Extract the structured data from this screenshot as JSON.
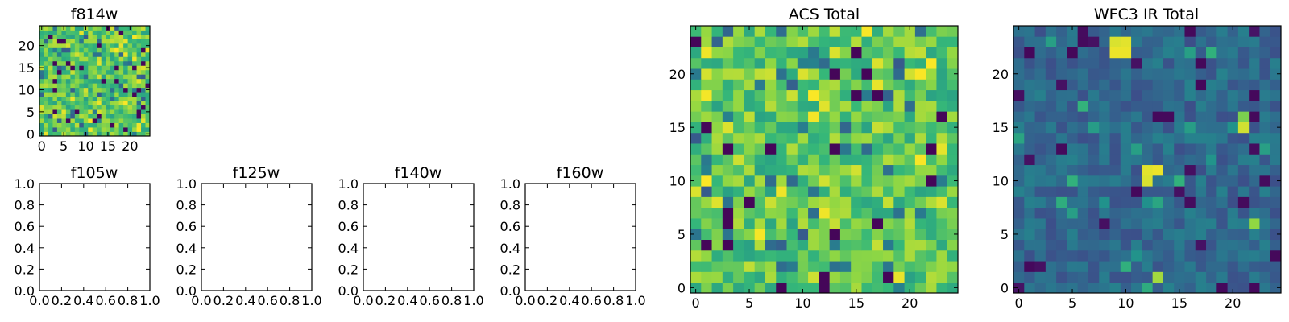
{
  "figure": {
    "background": "#ffffff",
    "colormap": "viridis"
  },
  "chart_data": [
    {
      "id": "f814w",
      "type": "heatmap",
      "title": "f814w",
      "grid_size": 25,
      "value_range": [
        0,
        1
      ],
      "seed": 814,
      "style": "acs",
      "xlim": [
        -0.5,
        24.5
      ],
      "ylim": [
        -0.5,
        24.5
      ],
      "xticks": [
        0,
        5,
        10,
        15,
        20
      ],
      "yticks": [
        0,
        5,
        10,
        15,
        20
      ],
      "xtick_labels": [
        "0",
        "5",
        "10",
        "15",
        "20"
      ],
      "ytick_labels": [
        "0",
        "5",
        "10",
        "15",
        "20"
      ],
      "values": []
    },
    {
      "id": "f105w",
      "type": "empty",
      "title": "f105w",
      "xlim": [
        0,
        1
      ],
      "ylim": [
        0,
        1
      ],
      "xticks": [
        0,
        0.2,
        0.4,
        0.6,
        0.8,
        1.0
      ],
      "yticks": [
        0,
        0.2,
        0.4,
        0.6,
        0.8,
        1.0
      ],
      "xtick_labels": [
        "0.0",
        "0.2",
        "0.4",
        "0.6",
        "0.8",
        "1.0"
      ],
      "ytick_labels": [
        "0.0",
        "0.2",
        "0.4",
        "0.6",
        "0.8",
        "1.0"
      ]
    },
    {
      "id": "f125w",
      "type": "empty",
      "title": "f125w",
      "xlim": [
        0,
        1
      ],
      "ylim": [
        0,
        1
      ],
      "xticks": [
        0,
        0.2,
        0.4,
        0.6,
        0.8,
        1.0
      ],
      "yticks": [
        0,
        0.2,
        0.4,
        0.6,
        0.8,
        1.0
      ],
      "xtick_labels": [
        "0.0",
        "0.2",
        "0.4",
        "0.6",
        "0.8",
        "1.0"
      ],
      "ytick_labels": [
        "0.0",
        "0.2",
        "0.4",
        "0.6",
        "0.8",
        "1.0"
      ]
    },
    {
      "id": "f140w",
      "type": "empty",
      "title": "f140w",
      "xlim": [
        0,
        1
      ],
      "ylim": [
        0,
        1
      ],
      "xticks": [
        0,
        0.2,
        0.4,
        0.6,
        0.8,
        1.0
      ],
      "yticks": [
        0,
        0.2,
        0.4,
        0.6,
        0.8,
        1.0
      ],
      "xtick_labels": [
        "0.0",
        "0.2",
        "0.4",
        "0.6",
        "0.8",
        "1.0"
      ],
      "ytick_labels": [
        "0.0",
        "0.2",
        "0.4",
        "0.6",
        "0.8",
        "1.0"
      ]
    },
    {
      "id": "f160w",
      "type": "empty",
      "title": "f160w",
      "xlim": [
        0,
        1
      ],
      "ylim": [
        0,
        1
      ],
      "xticks": [
        0,
        0.2,
        0.4,
        0.6,
        0.8,
        1.0
      ],
      "yticks": [
        0,
        0.2,
        0.4,
        0.6,
        0.8,
        1.0
      ],
      "xtick_labels": [
        "0.0",
        "0.2",
        "0.4",
        "0.6",
        "0.8",
        "1.0"
      ],
      "ytick_labels": [
        "0.0",
        "0.2",
        "0.4",
        "0.6",
        "0.8",
        "1.0"
      ]
    },
    {
      "id": "acs-total",
      "type": "heatmap",
      "title": "ACS Total",
      "grid_size": 25,
      "value_range": [
        0,
        1
      ],
      "seed": 1001,
      "style": "acs",
      "xlim": [
        -0.5,
        24.5
      ],
      "ylim": [
        -0.5,
        24.5
      ],
      "xticks": [
        0,
        5,
        10,
        15,
        20
      ],
      "yticks": [
        0,
        5,
        10,
        15,
        20
      ],
      "xtick_labels": [
        "0",
        "5",
        "10",
        "15",
        "20"
      ],
      "ytick_labels": [
        "0",
        "5",
        "10",
        "15",
        "20"
      ],
      "values": []
    },
    {
      "id": "wfc3-ir-total",
      "type": "heatmap",
      "title": "WFC3 IR Total",
      "grid_size": 25,
      "value_range": [
        0,
        1
      ],
      "seed": 2002,
      "style": "ir",
      "xlim": [
        -0.5,
        24.5
      ],
      "ylim": [
        -0.5,
        24.5
      ],
      "xticks": [
        0,
        5,
        10,
        15,
        20
      ],
      "yticks": [
        0,
        5,
        10,
        15,
        20
      ],
      "xtick_labels": [
        "0",
        "5",
        "10",
        "15",
        "20"
      ],
      "ytick_labels": [
        "0",
        "5",
        "10",
        "15",
        "20"
      ],
      "hotspots": [
        {
          "x": 9,
          "y": 22,
          "v": 0.98
        },
        {
          "x": 10,
          "y": 22,
          "v": 0.98
        },
        {
          "x": 9,
          "y": 23,
          "v": 0.96
        },
        {
          "x": 10,
          "y": 23,
          "v": 0.97
        },
        {
          "x": 12,
          "y": 11,
          "v": 0.97
        },
        {
          "x": 13,
          "y": 11,
          "v": 0.98
        },
        {
          "x": 12,
          "y": 10,
          "v": 0.96
        },
        {
          "x": 21,
          "y": 15,
          "v": 0.95
        },
        {
          "x": 21,
          "y": 16,
          "v": 0.85
        },
        {
          "x": 22,
          "y": 6,
          "v": 0.88
        },
        {
          "x": 13,
          "y": 1,
          "v": 0.9
        },
        {
          "x": 13,
          "y": 16,
          "v": 0.03
        },
        {
          "x": 14,
          "y": 16,
          "v": 0.03
        },
        {
          "x": 1,
          "y": 2,
          "v": 0.03
        },
        {
          "x": 19,
          "y": 0,
          "v": 0.03
        },
        {
          "x": 22,
          "y": 0,
          "v": 0.03
        },
        {
          "x": 22,
          "y": 18,
          "v": 0.03
        },
        {
          "x": 11,
          "y": 9,
          "v": 0.03
        }
      ],
      "values": []
    }
  ]
}
